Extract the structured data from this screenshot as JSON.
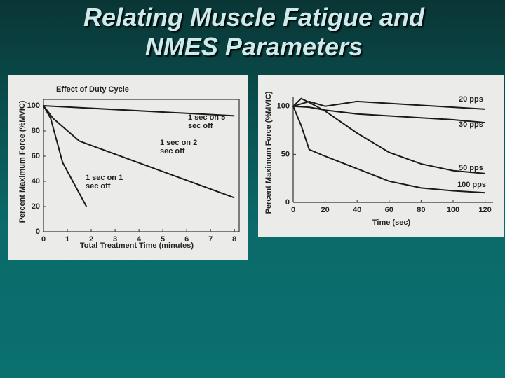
{
  "slide_title": "Relating Muscle Fatigue and NMES Parameters",
  "chart_data": [
    {
      "type": "line",
      "title": "Effect of Duty Cycle",
      "x_label": "Total Treatment Time (minutes)",
      "y_label": "Percent Maximum Force (%MVIC)",
      "xlim": [
        0,
        8.2
      ],
      "xticks": [
        0,
        1,
        2,
        3,
        4,
        5,
        6,
        7,
        8
      ],
      "ylim": [
        0,
        105
      ],
      "yticks": [
        0,
        20,
        40,
        60,
        80,
        100
      ],
      "series": [
        {
          "name": "1 sec on 5 sec off",
          "color": "#1a1a1a",
          "x": [
            0,
            8
          ],
          "values": [
            100,
            92
          ]
        },
        {
          "name": "1 sec on 2 sec off",
          "color": "#1a1a1a",
          "x": [
            0,
            0.4,
            1.5,
            8
          ],
          "values": [
            100,
            90,
            72,
            27
          ]
        },
        {
          "name": "1 sec on 1 sec off",
          "color": "#1a1a1a",
          "x": [
            0,
            0.3,
            0.8,
            1.8
          ],
          "values": [
            100,
            90,
            55,
            20
          ]
        }
      ]
    },
    {
      "type": "line",
      "x_label": "Time (sec)",
      "y_label": "Percent Maximum Force (%MVIC)",
      "xlim": [
        0,
        125
      ],
      "xticks": [
        0,
        20,
        40,
        60,
        80,
        100,
        120
      ],
      "ylim": [
        0,
        110
      ],
      "yticks": [
        0,
        50,
        100
      ],
      "series": [
        {
          "name": "20 pps",
          "color": "#1a1a1a",
          "x": [
            0,
            10,
            20,
            40,
            60,
            80,
            100,
            120
          ],
          "values": [
            100,
            105,
            100,
            105,
            103,
            101,
            99,
            97
          ]
        },
        {
          "name": "30 pps",
          "color": "#1a1a1a",
          "x": [
            0,
            10,
            20,
            40,
            60,
            80,
            100,
            120
          ],
          "values": [
            100,
            99,
            96,
            92,
            90,
            88,
            86,
            83
          ]
        },
        {
          "name": "50 pps",
          "color": "#1a1a1a",
          "x": [
            0,
            5,
            10,
            20,
            40,
            60,
            80,
            100,
            120
          ],
          "values": [
            100,
            108,
            104,
            95,
            72,
            52,
            40,
            33,
            30
          ]
        },
        {
          "name": "100 pps",
          "color": "#1a1a1a",
          "x": [
            0,
            5,
            10,
            20,
            40,
            60,
            80,
            100,
            120
          ],
          "values": [
            100,
            80,
            55,
            48,
            35,
            22,
            15,
            12,
            10
          ]
        }
      ]
    }
  ]
}
